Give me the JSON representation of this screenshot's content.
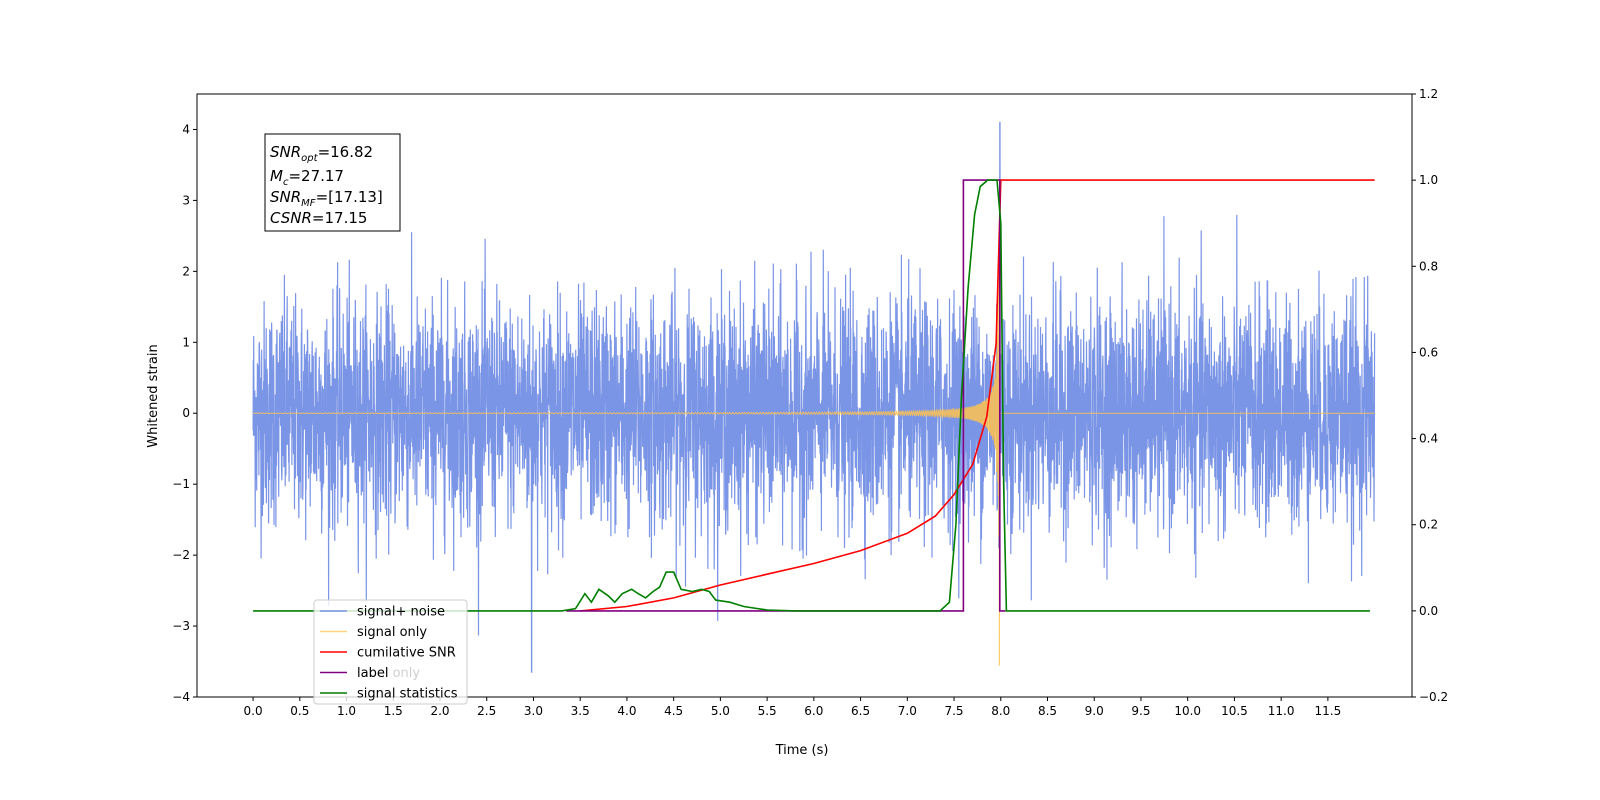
{
  "chart_data": {
    "type": "line",
    "xlabel": "Time (s)",
    "ylabel": "Whitened strain",
    "xlim": [
      -0.6,
      12.4
    ],
    "ylim": [
      -4,
      4.5
    ],
    "y2lim": [
      -0.2,
      1.2
    ],
    "xticks": [
      "0.0",
      "0.5",
      "1.0",
      "1.5",
      "2.0",
      "2.5",
      "3.0",
      "3.5",
      "4.0",
      "4.5",
      "5.0",
      "5.5",
      "6.0",
      "6.5",
      "7.0",
      "7.5",
      "8.0",
      "8.5",
      "9.0",
      "9.5",
      "10.0",
      "10.5",
      "11.0",
      "11.5"
    ],
    "yticks": [
      "−4",
      "−3",
      "−2",
      "−1",
      "0",
      "1",
      "2",
      "3",
      "4"
    ],
    "y2ticks": [
      "−0.2",
      "0.0",
      "0.2",
      "0.4",
      "0.6",
      "0.8",
      "1.0",
      "1.2"
    ],
    "annotation": {
      "snr_opt": "16.82",
      "mc": "27.17",
      "snr_mf": "[17.13]",
      "csnr": "17.15"
    },
    "legend_position": "lower-left",
    "legend": [
      {
        "label": "signal+ noise",
        "color": "#7b95e6"
      },
      {
        "label": "signal only",
        "color": "#ffd27f"
      },
      {
        "label": "cumilative SNR",
        "color": "#ff0000"
      },
      {
        "label": "label",
        "color": "#800080"
      },
      {
        "label": "signal statistics",
        "color": "#008000"
      }
    ],
    "hidden_legend_text": "label only",
    "series": [
      {
        "name": "signal+ noise",
        "axis": "left",
        "kind": "noise",
        "x_range": [
          0.0,
          12.0
        ],
        "std": 0.78,
        "peak_max": 4.1,
        "peak_min": -3.65,
        "color": "#7b95e6"
      },
      {
        "name": "signal only",
        "axis": "left",
        "kind": "chirp",
        "x_range": [
          0.0,
          12.0
        ],
        "merger_time": 7.98,
        "peak_min": -3.55,
        "color": "#ffc34d"
      },
      {
        "name": "cumilative SNR",
        "axis": "right",
        "points": [
          [
            3.5,
            0.0
          ],
          [
            4.0,
            0.01
          ],
          [
            4.5,
            0.03
          ],
          [
            5.0,
            0.06
          ],
          [
            5.5,
            0.085
          ],
          [
            6.0,
            0.11
          ],
          [
            6.5,
            0.14
          ],
          [
            7.0,
            0.18
          ],
          [
            7.3,
            0.22
          ],
          [
            7.5,
            0.27
          ],
          [
            7.7,
            0.34
          ],
          [
            7.85,
            0.45
          ],
          [
            7.95,
            0.62
          ],
          [
            8.0,
            1.0
          ],
          [
            12.0,
            1.0
          ]
        ],
        "color": "#ff0000"
      },
      {
        "name": "label",
        "axis": "right",
        "points": [
          [
            3.35,
            0.0
          ],
          [
            7.6,
            0.0
          ],
          [
            7.6,
            1.0
          ],
          [
            7.99,
            1.0
          ],
          [
            7.99,
            0.0
          ],
          [
            8.05,
            0.0
          ],
          [
            8.05,
            0.0
          ]
        ],
        "color": "#800080"
      },
      {
        "name": "signal statistics",
        "axis": "right",
        "points": [
          [
            0.0,
            0.0
          ],
          [
            3.3,
            0.0
          ],
          [
            3.45,
            0.005
          ],
          [
            3.55,
            0.04
          ],
          [
            3.62,
            0.02
          ],
          [
            3.7,
            0.05
          ],
          [
            3.8,
            0.035
          ],
          [
            3.87,
            0.02
          ],
          [
            3.95,
            0.04
          ],
          [
            4.05,
            0.05
          ],
          [
            4.12,
            0.04
          ],
          [
            4.2,
            0.03
          ],
          [
            4.28,
            0.045
          ],
          [
            4.35,
            0.055
          ],
          [
            4.42,
            0.09
          ],
          [
            4.5,
            0.09
          ],
          [
            4.58,
            0.05
          ],
          [
            4.7,
            0.045
          ],
          [
            4.8,
            0.05
          ],
          [
            4.88,
            0.045
          ],
          [
            4.95,
            0.025
          ],
          [
            5.1,
            0.02
          ],
          [
            5.25,
            0.01
          ],
          [
            5.5,
            0.002
          ],
          [
            5.8,
            0.0
          ],
          [
            7.35,
            0.0
          ],
          [
            7.45,
            0.02
          ],
          [
            7.52,
            0.2
          ],
          [
            7.58,
            0.5
          ],
          [
            7.65,
            0.75
          ],
          [
            7.72,
            0.92
          ],
          [
            7.78,
            0.985
          ],
          [
            7.86,
            1.0
          ],
          [
            7.96,
            1.0
          ],
          [
            8.0,
            0.9
          ],
          [
            8.03,
            0.3
          ],
          [
            8.06,
            0.0
          ],
          [
            11.95,
            0.0
          ]
        ],
        "color": "#008000"
      }
    ]
  }
}
